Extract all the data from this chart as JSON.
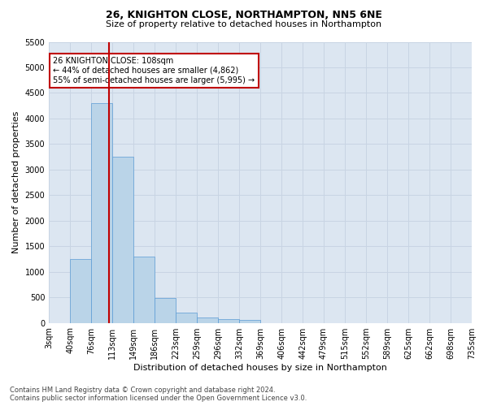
{
  "title1": "26, KNIGHTON CLOSE, NORTHAMPTON, NN5 6NE",
  "title2": "Size of property relative to detached houses in Northampton",
  "xlabel": "Distribution of detached houses by size in Northampton",
  "ylabel": "Number of detached properties",
  "footnote": "Contains HM Land Registry data © Crown copyright and database right 2024.\nContains public sector information licensed under the Open Government Licence v3.0.",
  "bin_labels": [
    "3sqm",
    "40sqm",
    "76sqm",
    "113sqm",
    "149sqm",
    "186sqm",
    "223sqm",
    "259sqm",
    "296sqm",
    "332sqm",
    "369sqm",
    "406sqm",
    "442sqm",
    "479sqm",
    "515sqm",
    "552sqm",
    "589sqm",
    "625sqm",
    "662sqm",
    "698sqm",
    "735sqm"
  ],
  "bar_values": [
    0,
    1250,
    4300,
    3250,
    1300,
    480,
    200,
    110,
    70,
    50,
    0,
    0,
    0,
    0,
    0,
    0,
    0,
    0,
    0,
    0
  ],
  "bar_color": "#bad4e8",
  "bar_edgecolor": "#5b9bd5",
  "vline_position": 2.85,
  "vline_color": "#c00000",
  "ylim": [
    0,
    5500
  ],
  "yticks": [
    0,
    500,
    1000,
    1500,
    2000,
    2500,
    3000,
    3500,
    4000,
    4500,
    5000,
    5500
  ],
  "annotation_text": "26 KNIGHTON CLOSE: 108sqm\n← 44% of detached houses are smaller (4,862)\n55% of semi-detached houses are larger (5,995) →",
  "annotation_box_color": "#c00000",
  "grid_color": "#c8d4e3",
  "background_color": "#dce6f1",
  "title_fontsize": 9,
  "subtitle_fontsize": 8,
  "ylabel_fontsize": 8,
  "xlabel_fontsize": 8,
  "tick_fontsize": 7,
  "annot_fontsize": 7,
  "footnote_fontsize": 6
}
